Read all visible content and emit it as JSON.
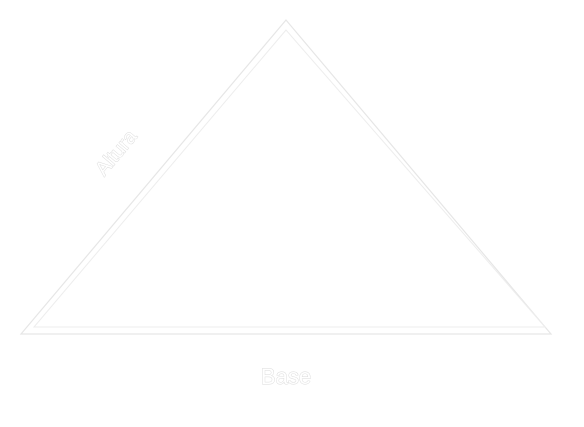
{
  "labels": {
    "side": "Altura",
    "base": "Base"
  },
  "colors": {
    "background": "#ffffff",
    "outline": "#e6e6e6",
    "text_outline": "#d9d9d9"
  }
}
